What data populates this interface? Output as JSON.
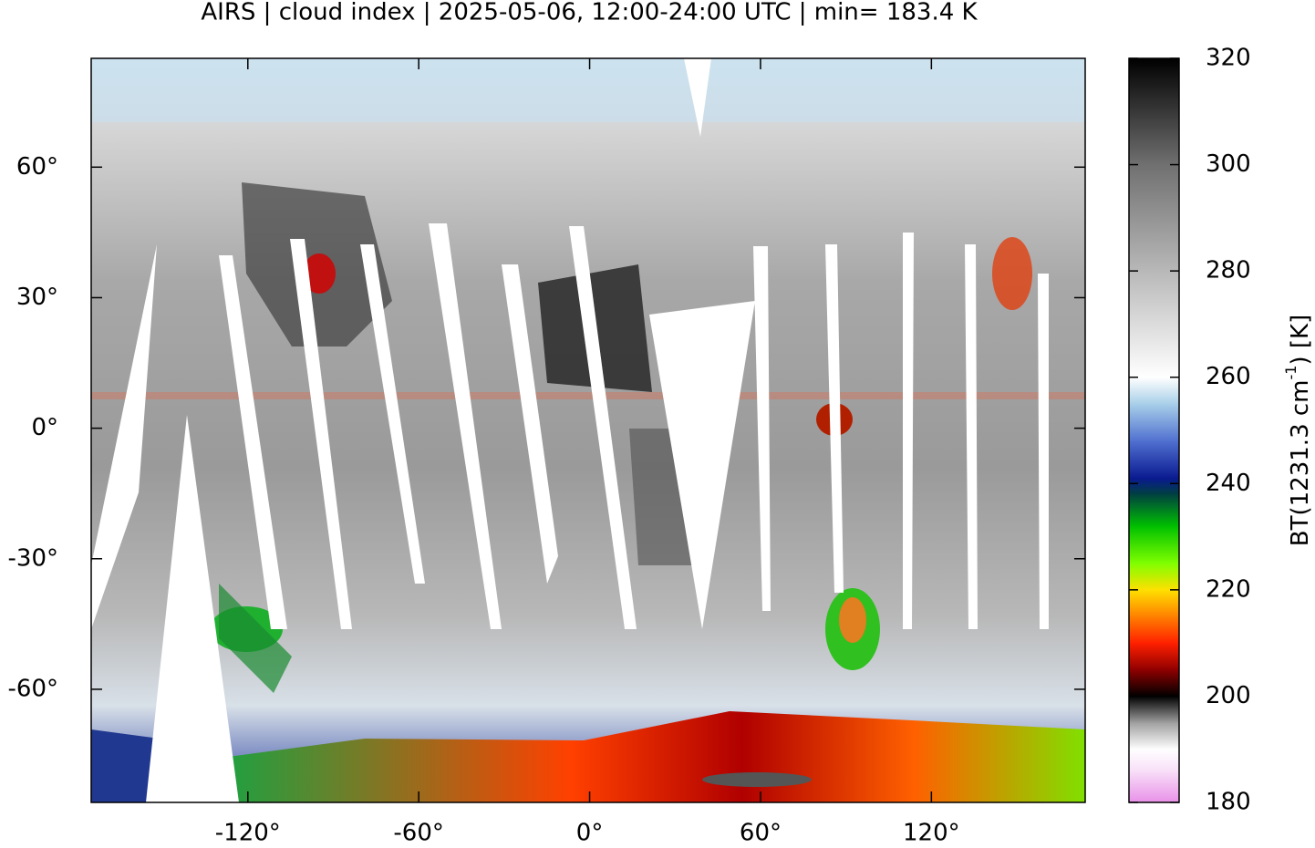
{
  "chart_data": {
    "type": "map",
    "title": "AIRS | cloud index | 2025-05-06, 12:00-24:00 UTC | min= 183.4 K",
    "xlim": [
      -175,
      174
    ],
    "ylim": [
      -86,
      85
    ],
    "xticks": [
      {
        "value": -120,
        "label": "-120°"
      },
      {
        "value": -60,
        "label": "-60°"
      },
      {
        "value": 0,
        "label": "0°"
      },
      {
        "value": 60,
        "label": "60°"
      },
      {
        "value": 120,
        "label": "120°"
      }
    ],
    "yticks": [
      {
        "value": -60,
        "label": "-60°"
      },
      {
        "value": -30,
        "label": "-30°"
      },
      {
        "value": 0,
        "label": "0°"
      },
      {
        "value": 30,
        "label": "30°"
      },
      {
        "value": 60,
        "label": "60°"
      }
    ],
    "colorbar": {
      "label": [
        "BT(1231.3 cm",
        "-1",
        ") [K]"
      ],
      "lim": [
        180,
        320
      ],
      "ticks": [
        180,
        200,
        220,
        240,
        260,
        280,
        300,
        320
      ],
      "colormap": [
        {
          "value": 180,
          "color": "#e890e8"
        },
        {
          "value": 186,
          "color": "#f8e0f8"
        },
        {
          "value": 190,
          "color": "#ffffff"
        },
        {
          "value": 195,
          "color": "#a0a0a0"
        },
        {
          "value": 200,
          "color": "#000000"
        },
        {
          "value": 205,
          "color": "#900000"
        },
        {
          "value": 210,
          "color": "#ff2000"
        },
        {
          "value": 215,
          "color": "#ff8000"
        },
        {
          "value": 220,
          "color": "#ffe000"
        },
        {
          "value": 225,
          "color": "#80ff00"
        },
        {
          "value": 232,
          "color": "#00c000"
        },
        {
          "value": 238,
          "color": "#004040"
        },
        {
          "value": 241,
          "color": "#0a1a90"
        },
        {
          "value": 248,
          "color": "#5070d0"
        },
        {
          "value": 255,
          "color": "#a8cfe8"
        },
        {
          "value": 260,
          "color": "#ffffff"
        },
        {
          "value": 280,
          "color": "#b8b8b8"
        },
        {
          "value": 300,
          "color": "#707070"
        },
        {
          "value": 320,
          "color": "#000000"
        }
      ]
    }
  }
}
